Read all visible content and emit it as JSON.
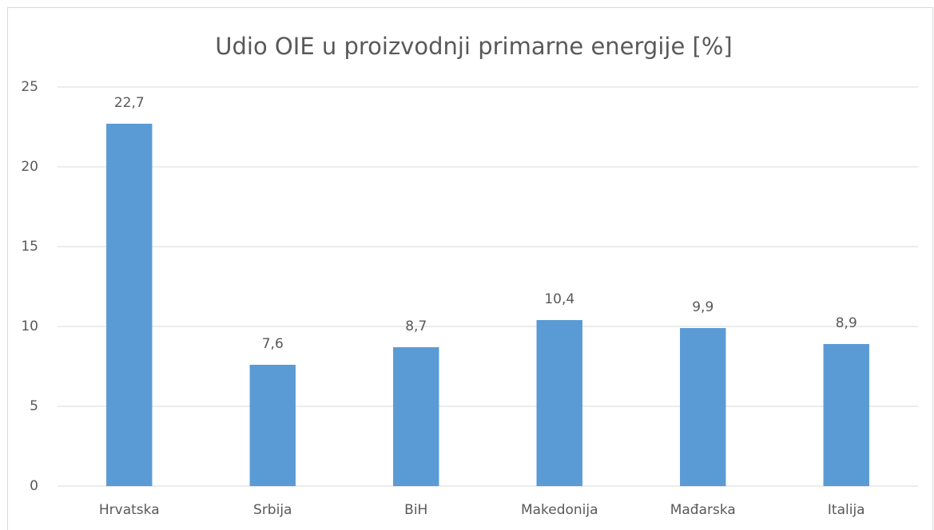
{
  "chart_data": {
    "type": "bar",
    "title": "Udio OIE u proizvodnji primarne energije [%]",
    "categories": [
      "Hrvatska",
      "Srbija",
      "BiH",
      "Makedonija",
      "Mađarska",
      "Italija"
    ],
    "values": [
      22.7,
      7.6,
      8.7,
      10.4,
      9.9,
      8.9
    ],
    "value_labels": [
      "22,7",
      "7,6",
      "8,7",
      "10,4",
      "9,9",
      "8,9"
    ],
    "color": "#5b9bd5",
    "ylim": [
      0,
      25
    ],
    "yticks": [
      0,
      5,
      10,
      15,
      20,
      25
    ],
    "grid": true
  }
}
